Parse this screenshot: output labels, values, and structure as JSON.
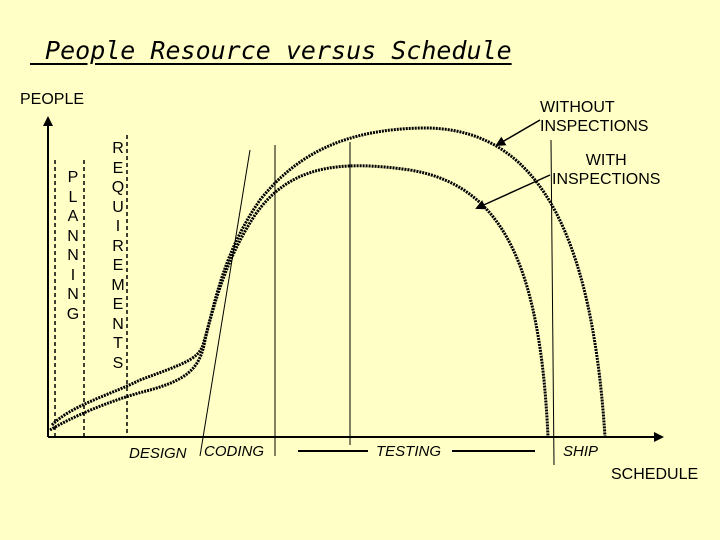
{
  "title": " People Resource versus Schedule",
  "axes": {
    "y_label": "PEOPLE",
    "x_label": "SCHEDULE"
  },
  "phases": {
    "planning": "P\nL\nA\nN\nN\nI\nN\nG",
    "requirements": "R\nE\nQ\nU\nI\nR\nE\nM\nE\nN\nT\nS",
    "design": "DESIGN",
    "coding": "CODING",
    "testing": "TESTING",
    "ship": "SHIP"
  },
  "curves": {
    "without": "WITHOUT\nINSPECTIONS",
    "with": "WITH\nINSPECTIONS"
  }
}
